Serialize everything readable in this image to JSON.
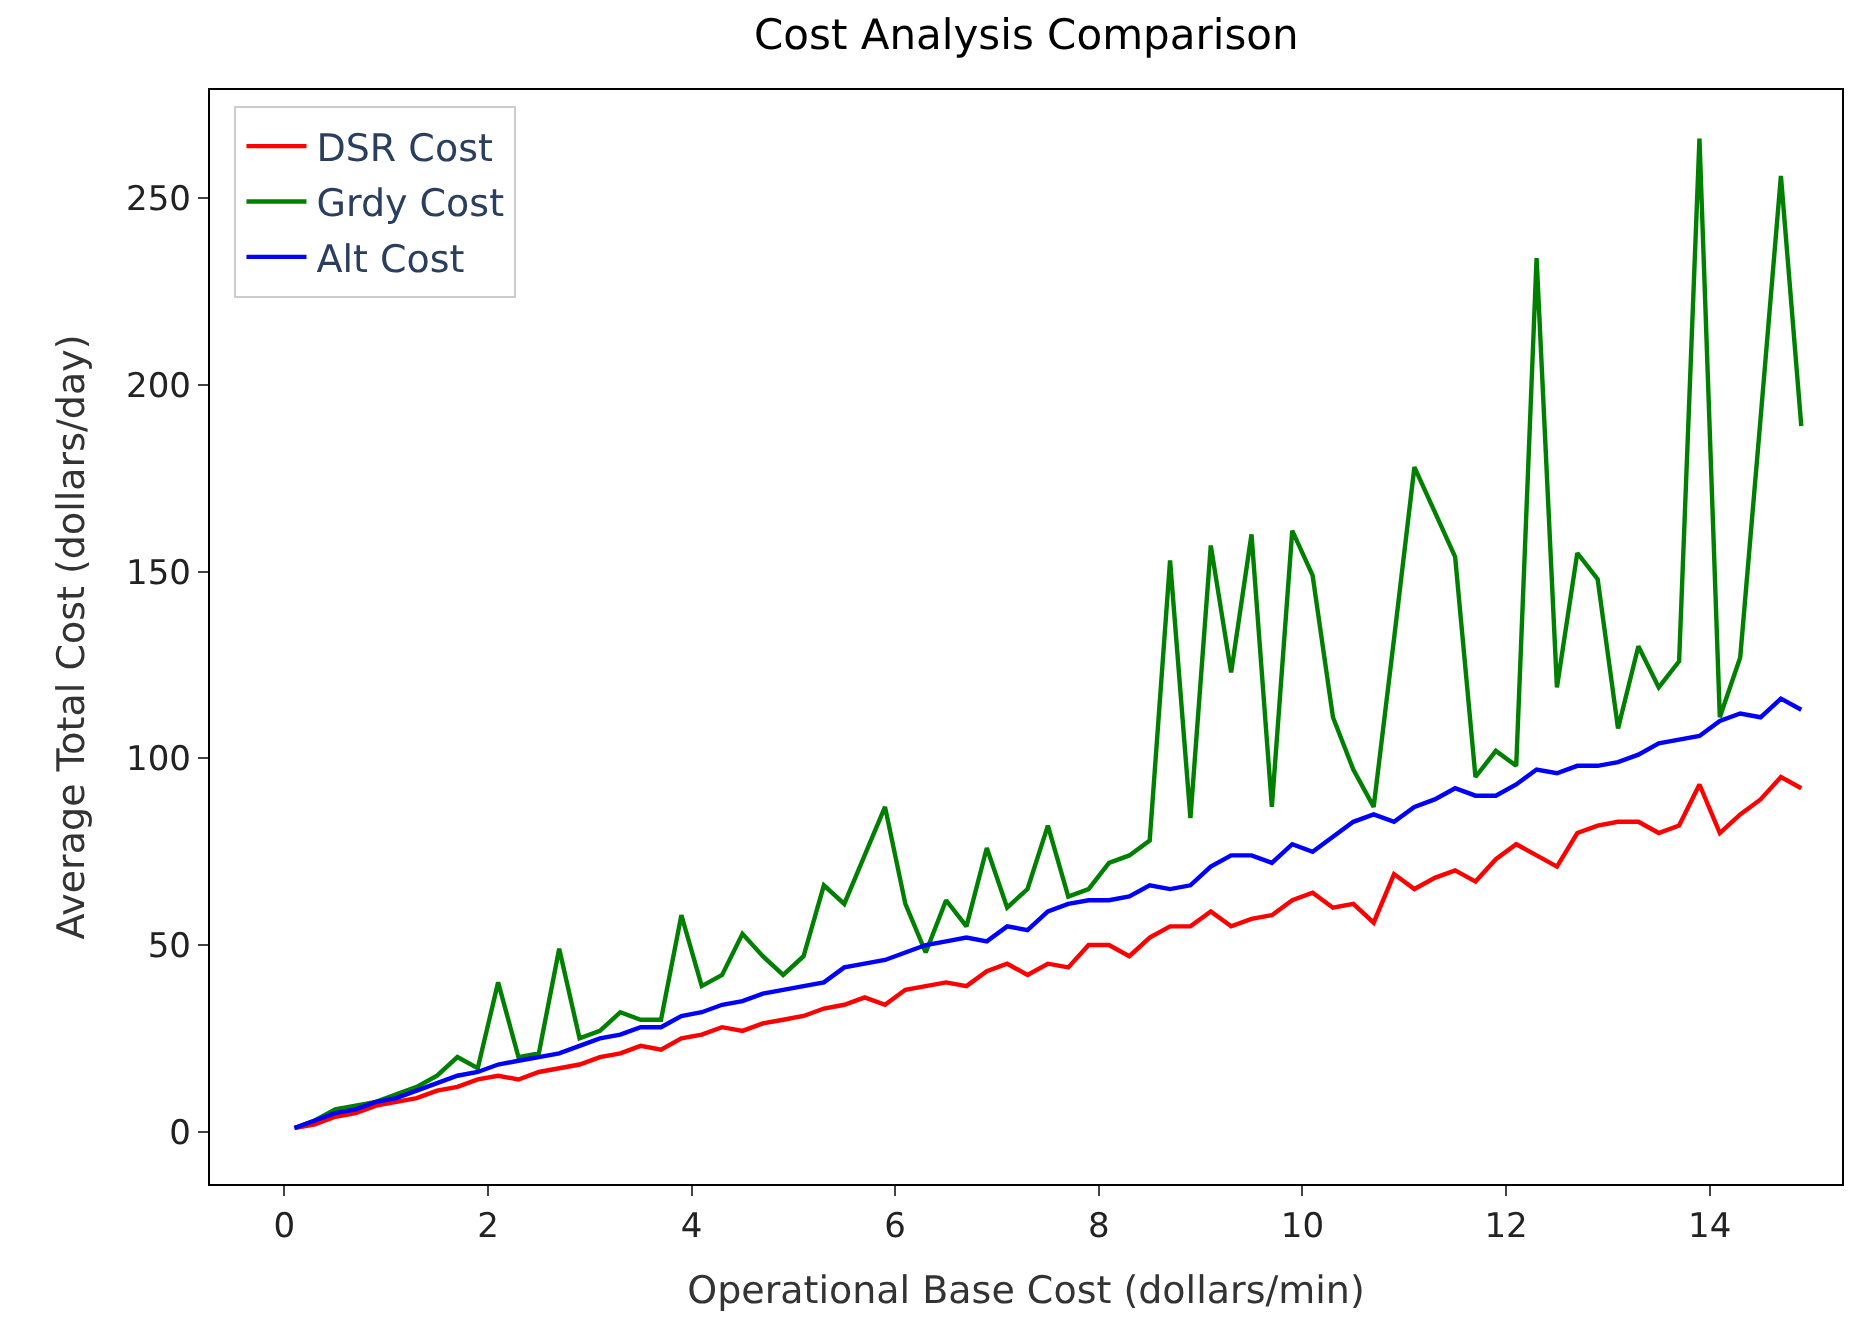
{
  "chart_data": {
    "type": "line",
    "title": "Cost Analysis Comparison",
    "xlabel": "Operational Base Cost (dollars/min)",
    "ylabel": "Average Total Cost (dollars/day)",
    "x": [
      0.1,
      0.3,
      0.5,
      0.7,
      0.9,
      1.1,
      1.3,
      1.5,
      1.7,
      1.9,
      2.1,
      2.3,
      2.5,
      2.7,
      2.9,
      3.1,
      3.3,
      3.5,
      3.7,
      3.9,
      4.1,
      4.3,
      4.5,
      4.7,
      4.9,
      5.1,
      5.3,
      5.5,
      5.7,
      5.9,
      6.1,
      6.3,
      6.5,
      6.7,
      6.9,
      7.1,
      7.3,
      7.5,
      7.7,
      7.9,
      8.1,
      8.3,
      8.5,
      8.7,
      8.9,
      9.1,
      9.3,
      9.5,
      9.7,
      9.9,
      10.1,
      10.3,
      10.5,
      10.7,
      10.9,
      11.1,
      11.3,
      11.5,
      11.7,
      11.9,
      12.1,
      12.3,
      12.5,
      12.7,
      12.9,
      13.1,
      13.3,
      13.5,
      13.7,
      13.9,
      14.1,
      14.3,
      14.5,
      14.7,
      14.9
    ],
    "series": [
      {
        "name": "DSR Cost",
        "color": "#ff0000",
        "values": [
          1,
          2,
          4,
          5,
          7,
          8,
          9,
          11,
          12,
          14,
          15,
          14,
          16,
          17,
          18,
          20,
          21,
          23,
          22,
          25,
          26,
          28,
          27,
          29,
          30,
          31,
          33,
          34,
          36,
          34,
          38,
          39,
          40,
          39,
          43,
          45,
          42,
          45,
          44,
          50,
          50,
          47,
          52,
          55,
          55,
          59,
          55,
          57,
          58,
          62,
          64,
          60,
          61,
          56,
          69,
          65,
          68,
          70,
          67,
          73,
          77,
          74,
          71,
          80,
          82,
          83,
          83,
          80,
          82,
          93,
          80,
          85,
          89,
          95,
          92
        ]
      },
      {
        "name": "Grdy Cost",
        "color": "#008000",
        "values": [
          1,
          3,
          6,
          7,
          8,
          10,
          12,
          15,
          20,
          17,
          40,
          20,
          21,
          49,
          25,
          27,
          32,
          30,
          30,
          58,
          39,
          42,
          53,
          47,
          42,
          47,
          66,
          61,
          74,
          87,
          61,
          48,
          62,
          55,
          76,
          60,
          65,
          82,
          63,
          65,
          72,
          74,
          78,
          153,
          84,
          157,
          123,
          160,
          87,
          161,
          149,
          111,
          97,
          87,
          132,
          178,
          166,
          154,
          95,
          102,
          98,
          234,
          119,
          155,
          148,
          108,
          130,
          119,
          126,
          266,
          111,
          127,
          191,
          256,
          189
        ]
      },
      {
        "name": "Alt Cost",
        "color": "#0000ff",
        "values": [
          1,
          3,
          5,
          6,
          8,
          9,
          11,
          13,
          15,
          16,
          18,
          19,
          20,
          21,
          23,
          25,
          26,
          28,
          28,
          31,
          32,
          34,
          35,
          37,
          38,
          39,
          40,
          44,
          45,
          46,
          48,
          50,
          51,
          52,
          51,
          55,
          54,
          59,
          61,
          62,
          62,
          63,
          66,
          65,
          66,
          71,
          74,
          74,
          72,
          77,
          75,
          79,
          83,
          85,
          83,
          87,
          89,
          92,
          90,
          90,
          93,
          97,
          96,
          98,
          98,
          99,
          101,
          104,
          105,
          106,
          110,
          112,
          111,
          116,
          113
        ]
      }
    ],
    "xlim": [
      -0.73,
      15.3
    ],
    "ylim": [
      -14,
      279
    ],
    "xticks": [
      0,
      2,
      4,
      6,
      8,
      10,
      12,
      14
    ],
    "yticks": [
      0,
      50,
      100,
      150,
      200,
      250
    ],
    "legend": "top left",
    "marker": "none",
    "line_style": "solid"
  }
}
